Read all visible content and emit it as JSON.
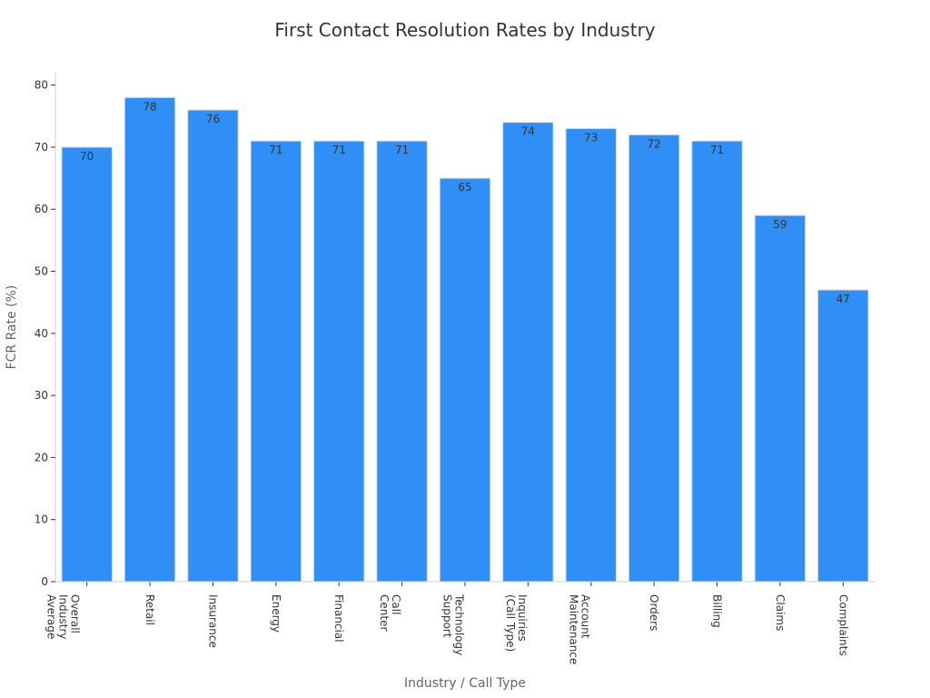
{
  "chart_data": {
    "type": "bar",
    "title": "First Contact Resolution Rates by Industry",
    "xlabel": "Industry / Call Type",
    "ylabel": "FCR Rate (%)",
    "ylim": [
      0,
      82
    ],
    "yticks": [
      0,
      10,
      20,
      30,
      40,
      50,
      60,
      70,
      80
    ],
    "grid": false,
    "bar_color": "#2f8ff7",
    "categories": [
      [
        "Overall",
        "Industry",
        "Average"
      ],
      [
        "Retail"
      ],
      [
        "Insurance"
      ],
      [
        "Energy"
      ],
      [
        "Financial"
      ],
      [
        "Call",
        "Center"
      ],
      [
        "Technology",
        "Support"
      ],
      [
        "Inquiries",
        "(Call Type)"
      ],
      [
        "Account",
        "Maintenance"
      ],
      [
        "Orders"
      ],
      [
        "Billing"
      ],
      [
        "Claims"
      ],
      [
        "Complaints"
      ]
    ],
    "values": [
      70,
      78,
      76,
      71,
      71,
      71,
      65,
      74,
      73,
      72,
      71,
      59,
      47
    ]
  }
}
